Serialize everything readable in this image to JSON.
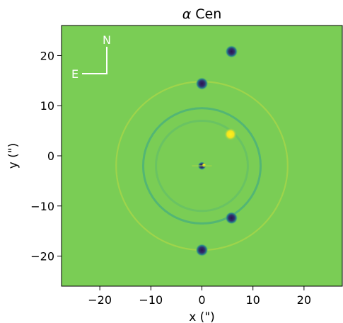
{
  "chart_data": {
    "type": "heatmap",
    "title_symbol": "α",
    "title_text": "Cen",
    "xlabel": "x (\")",
    "ylabel": "y (\")",
    "xlim": [
      -27.5,
      27.5
    ],
    "ylim": [
      -26,
      26
    ],
    "xticks": [
      -20,
      -10,
      0,
      10,
      20
    ],
    "yticks": [
      -20,
      -10,
      0,
      10,
      20
    ],
    "xtick_labels": [
      "−20",
      "−10",
      "0",
      "10",
      "20"
    ],
    "ytick_labels": [
      "−20",
      "−10",
      "0",
      "10",
      "20"
    ],
    "grid": false,
    "colormap": "viridis",
    "colors": {
      "background": "#7acd55",
      "dark": "#2a1550",
      "bright": "#f6e51d",
      "ring_dark": "#4cb27a",
      "ring_bright": "#a4d54a"
    },
    "sources": [
      {
        "x": 5.8,
        "y": 20.8,
        "kind": "dark"
      },
      {
        "x": 0.0,
        "y": 14.4,
        "kind": "dark"
      },
      {
        "x": 5.6,
        "y": 4.3,
        "kind": "bright"
      },
      {
        "x": 0.0,
        "y": -2.0,
        "kind": "center"
      },
      {
        "x": 5.8,
        "y": -12.4,
        "kind": "dark"
      },
      {
        "x": 0.0,
        "y": -18.8,
        "kind": "dark"
      }
    ],
    "rings": [
      {
        "cx": 0.0,
        "cy": -2.0,
        "r": 16.8,
        "kind": "bright"
      },
      {
        "cx": 0.0,
        "cy": -2.0,
        "r": 11.5,
        "kind": "dark"
      },
      {
        "cx": 0.0,
        "cy": -2.0,
        "r": 9.0,
        "kind": "dark"
      }
    ],
    "compass": {
      "north": "N",
      "east": "E"
    }
  }
}
